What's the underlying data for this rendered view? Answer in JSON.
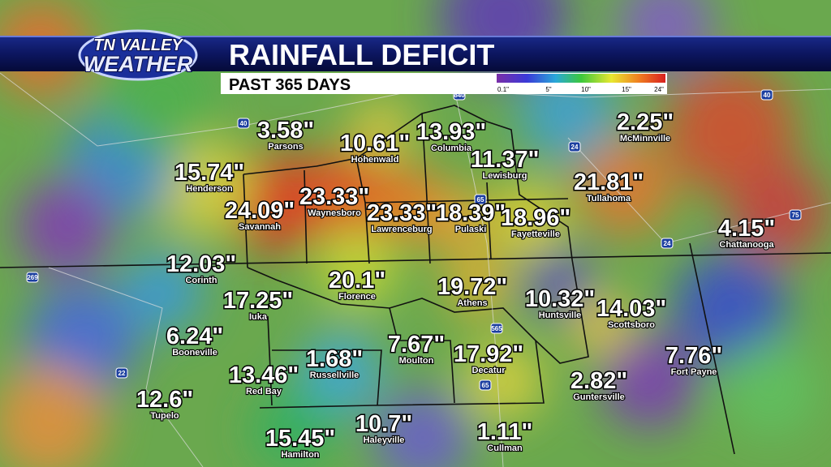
{
  "logo": {
    "line1": "TN VALLEY",
    "line2": "WEATHER"
  },
  "header": {
    "title": "RAINFALL DEFICIT",
    "subtitle": "PAST 365 DAYS"
  },
  "legend": {
    "labels": [
      "0.1\"",
      "5\"",
      "10\"",
      "15\"",
      "24\""
    ]
  },
  "highway_shields": [
    "40",
    "840",
    "24",
    "65",
    "40",
    "269",
    "565",
    "22",
    "65",
    "75",
    "24"
  ],
  "cities": [
    {
      "value": "3.58\"",
      "name": "Parsons"
    },
    {
      "value": "10.61\"",
      "name": "Hohenwald"
    },
    {
      "value": "13.93\"",
      "name": "Columbia"
    },
    {
      "value": "2.25\"",
      "name": "McMinnville"
    },
    {
      "value": "15.74\"",
      "name": "Henderson"
    },
    {
      "value": "11.37\"",
      "name": "Lewisburg"
    },
    {
      "value": "21.81\"",
      "name": "Tullahoma"
    },
    {
      "value": "24.09\"",
      "name": "Savannah"
    },
    {
      "value": "23.33\"",
      "name": "Waynesboro"
    },
    {
      "value": "23.33\"",
      "name": "Lawrenceburg"
    },
    {
      "value": "18.39\"",
      "name": "Pulaski"
    },
    {
      "value": "18.96\"",
      "name": "Fayetteville"
    },
    {
      "value": "4.15\"",
      "name": "Chattanooga"
    },
    {
      "value": "12.03\"",
      "name": "Corinth"
    },
    {
      "value": "20.1\"",
      "name": "Florence"
    },
    {
      "value": "19.72\"",
      "name": "Athens"
    },
    {
      "value": "10.32\"",
      "name": "Huntsville"
    },
    {
      "value": "17.25\"",
      "name": "Iuka"
    },
    {
      "value": "14.03\"",
      "name": "Scottsboro"
    },
    {
      "value": "6.24\"",
      "name": "Booneville"
    },
    {
      "value": "1.68\"",
      "name": "Russellville"
    },
    {
      "value": "7.67\"",
      "name": "Moulton"
    },
    {
      "value": "17.92\"",
      "name": "Decatur"
    },
    {
      "value": "7.76\"",
      "name": "Fort Payne"
    },
    {
      "value": "13.46\"",
      "name": "Red Bay"
    },
    {
      "value": "2.82\"",
      "name": "Guntersville"
    },
    {
      "value": "12.6\"",
      "name": "Tupelo"
    },
    {
      "value": "10.7\"",
      "name": "Haleyville"
    },
    {
      "value": "1.11\"",
      "name": "Cullman"
    },
    {
      "value": "15.45\"",
      "name": "Hamilton"
    }
  ]
}
